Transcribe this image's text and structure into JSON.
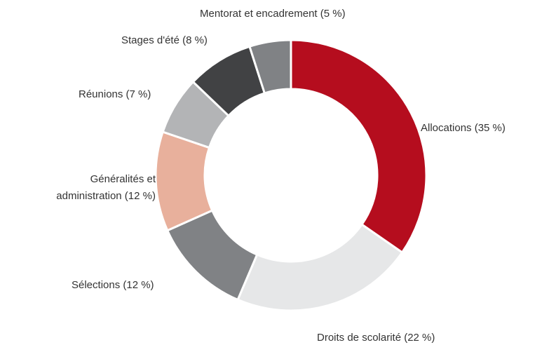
{
  "chart_data": {
    "type": "donut",
    "categories": [
      "Allocations (35 %)",
      "Droits de scolarité (22 %)",
      "Sélections (12 %)",
      "Généralités et administration (12 %)",
      "Réunions (7 %)",
      "Stages d'été (8 %)",
      "Mentorat et encadrement (5 %)"
    ],
    "values": [
      35,
      22,
      12,
      12,
      7,
      8,
      5
    ],
    "colors": [
      "#b50d1e",
      "#e6e7e8",
      "#808285",
      "#e8b09c",
      "#b3b4b6",
      "#414244",
      "#808285"
    ]
  }
}
